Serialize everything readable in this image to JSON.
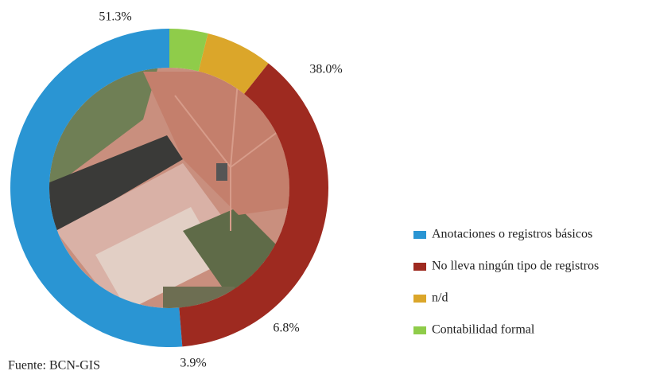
{
  "chart_data": {
    "type": "donut",
    "categories": [
      "Anotaciones o registros básicos",
      "No lleva ningún tipo de registros",
      "n/d",
      "Contabilidad formal"
    ],
    "values": [
      51.3,
      38.0,
      6.8,
      3.9
    ],
    "value_labels": [
      "51.3%",
      "38.0%",
      "6.8%",
      "3.9%"
    ],
    "colors": [
      "#2a95d3",
      "#9e2a20",
      "#dba62a",
      "#8fcc4a"
    ],
    "legend": "right",
    "source": "Fuente: BCN-GIS"
  }
}
